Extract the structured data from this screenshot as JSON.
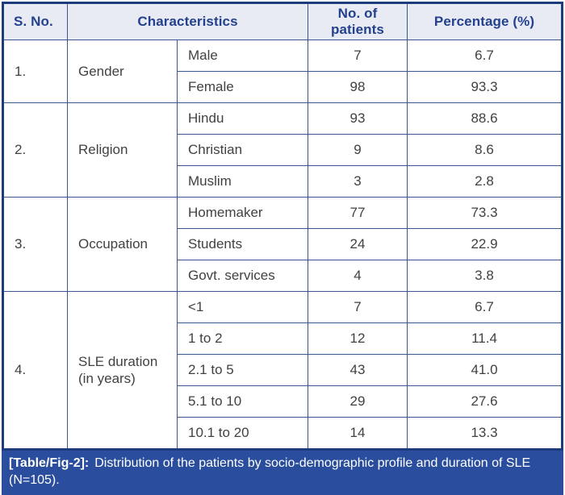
{
  "table": {
    "headers": {
      "sno": "S. No.",
      "characteristics": "Characteristics",
      "patients": "No. of patients",
      "percentage": "Percentage (%)"
    },
    "groups": [
      {
        "sno": "1.",
        "name": "Gender",
        "rows": [
          [
            "Male",
            "7",
            "6.7"
          ],
          [
            "Female",
            "98",
            "93.3"
          ]
        ]
      },
      {
        "sno": "2.",
        "name": "Religion",
        "rows": [
          [
            "Hindu",
            "93",
            "88.6"
          ],
          [
            "Christian",
            "9",
            "8.6"
          ],
          [
            "Muslim",
            "3",
            "2.8"
          ]
        ]
      },
      {
        "sno": "3.",
        "name": "Occupation",
        "rows": [
          [
            "Homemaker",
            "77",
            "73.3"
          ],
          [
            "Students",
            "24",
            "22.9"
          ],
          [
            "Govt. services",
            "4",
            "3.8"
          ]
        ]
      },
      {
        "sno": "4.",
        "name": "SLE duration (in years)",
        "rows": [
          [
            "<1",
            "7",
            "6.7"
          ],
          [
            "1 to 2",
            "12",
            "11.4"
          ],
          [
            "2.1 to 5",
            "43",
            "41.0"
          ],
          [
            "5.1 to 10",
            "29",
            "27.6"
          ],
          [
            "10.1 to 20",
            "14",
            "13.3"
          ]
        ]
      }
    ]
  },
  "caption": {
    "label": "[Table/Fig-2]:",
    "text": "Distribution of the patients by socio-demographic profile and duration of SLE (N=105)."
  },
  "colors": {
    "header_bg": "#e9ebf4",
    "header_text": "#23418e",
    "grid_border": "#3a568f",
    "outer_border": "#1e3c7b",
    "body_text": "#414141",
    "caption_bg": "#2a4e9d",
    "caption_text": "#ffffff"
  }
}
